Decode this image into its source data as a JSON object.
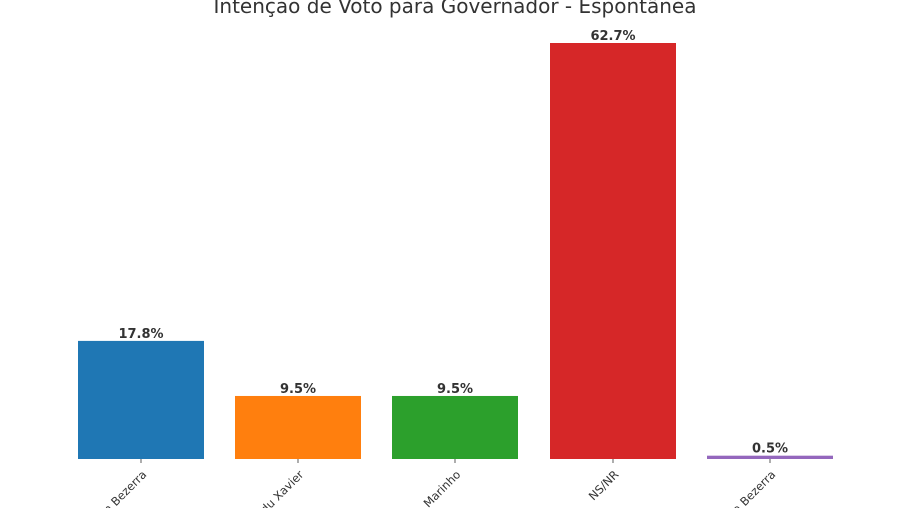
{
  "chart_data": {
    "type": "bar",
    "title": "Intenção de Voto para Governador - Espontânea",
    "categories": [
      "Gean Bezerra",
      "Eduardo Xavier",
      "João Marinho",
      "NS/NR",
      "Joana Bezerra"
    ],
    "tick_labels_visible": [
      "n Bezerra",
      "du Xavier",
      "Marinho",
      "NS/NR",
      "a Bezerra"
    ],
    "values": [
      17.8,
      9.5,
      9.5,
      62.7,
      0.5
    ],
    "value_labels": [
      "17.8%",
      "9.5%",
      "9.5%",
      "62.7%",
      "0.5%"
    ],
    "colors": [
      "#1f77b4",
      "#ff7f0e",
      "#2ca02c",
      "#d62728",
      "#9467bd"
    ],
    "xlabel": "",
    "ylabel": "",
    "ylim": [
      0,
      62.7
    ],
    "grid": false,
    "legend": "none"
  }
}
